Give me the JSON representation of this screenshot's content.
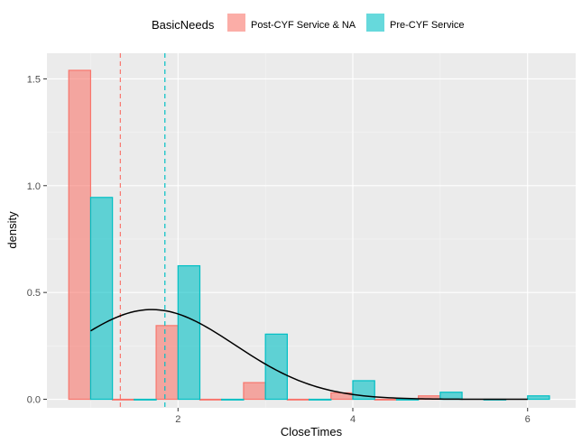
{
  "chart_data": {
    "type": "bar",
    "xlabel": "CloseTimes",
    "ylabel": "density",
    "xlim": [
      0.5,
      6.55
    ],
    "ylim": [
      -0.04,
      1.62
    ],
    "x_ticks": [
      2,
      4,
      6
    ],
    "y_ticks": [
      0.0,
      0.5,
      1.0,
      1.5
    ],
    "x_tick_labels": [
      "2",
      "4",
      "6"
    ],
    "y_tick_labels": [
      "0.0",
      "0.5",
      "1.0",
      "1.5"
    ],
    "grid": true,
    "legend": {
      "title": "BasicNeeds",
      "position": "top",
      "entries": [
        "Post-CYF Service & NA",
        "Pre-CYF Service"
      ]
    },
    "bin_width": 0.25,
    "series": [
      {
        "name": "Post-CYF Service & NA",
        "fill": "#F8766D",
        "values": [
          {
            "x": 0.875,
            "y": 1.54
          },
          {
            "x": 1.375,
            "y": 0.0
          },
          {
            "x": 1.875,
            "y": 0.345
          },
          {
            "x": 2.375,
            "y": 0.0
          },
          {
            "x": 2.875,
            "y": 0.078
          },
          {
            "x": 3.375,
            "y": 0.0
          },
          {
            "x": 3.875,
            "y": 0.03
          },
          {
            "x": 4.375,
            "y": 0.0
          },
          {
            "x": 4.875,
            "y": 0.016
          }
        ],
        "mean": 1.34
      },
      {
        "name": "Pre-CYF Service",
        "fill": "#00BFC4",
        "values": [
          {
            "x": 1.125,
            "y": 0.945
          },
          {
            "x": 1.625,
            "y": 0.0
          },
          {
            "x": 2.125,
            "y": 0.625
          },
          {
            "x": 2.625,
            "y": 0.0
          },
          {
            "x": 3.125,
            "y": 0.305
          },
          {
            "x": 3.625,
            "y": 0.0
          },
          {
            "x": 4.125,
            "y": 0.087
          },
          {
            "x": 4.625,
            "y": 0.0
          },
          {
            "x": 5.125,
            "y": 0.033
          },
          {
            "x": 5.625,
            "y": 0.0
          },
          {
            "x": 6.125,
            "y": 0.016
          }
        ],
        "mean": 1.85
      }
    ],
    "density_curve": {
      "type": "normal",
      "mean": 1.7,
      "sd": 0.95,
      "x_range": [
        1.0,
        6.0
      ],
      "color": "#000000"
    }
  }
}
